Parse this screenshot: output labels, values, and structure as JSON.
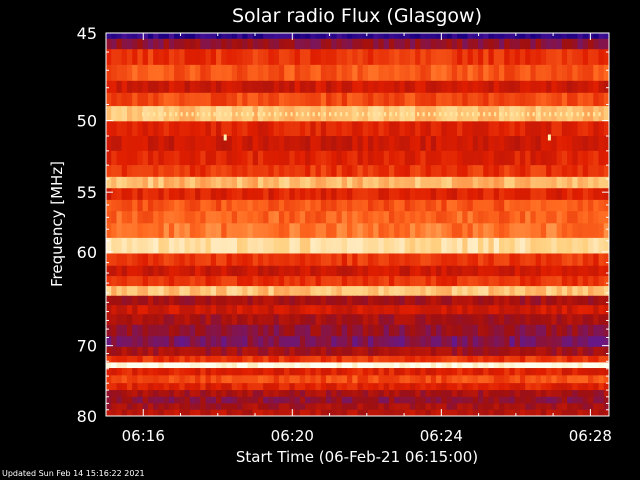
{
  "chart_data": {
    "type": "heatmap",
    "title": "Solar radio Flux (Glasgow)",
    "xlabel": "Start Time (06-Feb-21 06:15:00)",
    "ylabel": "Frequency [MHz]",
    "x_ticks": [
      "06:16",
      "06:20",
      "06:24",
      "06:28"
    ],
    "x_tick_values_min": [
      1,
      5,
      9,
      13
    ],
    "xlim_min": [
      0,
      13.5
    ],
    "y_ticks": [
      45,
      50,
      55,
      60,
      70,
      80
    ],
    "ylim": [
      45,
      80
    ],
    "y_scale": "inverse",
    "colormap": [
      "#1a0080",
      "#5a1aa0",
      "#a01010",
      "#e01e00",
      "#ff6a20",
      "#ffd080",
      "#fffff0"
    ],
    "bands": [
      {
        "freq": 45.1,
        "level": 0.05
      },
      {
        "freq": 45.5,
        "level": 0.3
      },
      {
        "freq": 46.2,
        "level": 0.55
      },
      {
        "freq": 47.2,
        "level": 0.62
      },
      {
        "freq": 48.0,
        "level": 0.45
      },
      {
        "freq": 48.6,
        "level": 0.6
      },
      {
        "freq": 49.6,
        "level": 0.82
      },
      {
        "freq": 50.5,
        "level": 0.5
      },
      {
        "freq": 51.5,
        "level": 0.45
      },
      {
        "freq": 52.5,
        "level": 0.5
      },
      {
        "freq": 53.5,
        "level": 0.55
      },
      {
        "freq": 54.2,
        "level": 0.8
      },
      {
        "freq": 55.2,
        "level": 0.5
      },
      {
        "freq": 56.0,
        "level": 0.62
      },
      {
        "freq": 57.0,
        "level": 0.65
      },
      {
        "freq": 58.0,
        "level": 0.68
      },
      {
        "freq": 59.5,
        "level": 0.88
      },
      {
        "freq": 60.8,
        "level": 0.55
      },
      {
        "freq": 61.8,
        "level": 0.45
      },
      {
        "freq": 62.8,
        "level": 0.55
      },
      {
        "freq": 63.8,
        "level": 0.82
      },
      {
        "freq": 64.8,
        "level": 0.35
      },
      {
        "freq": 65.8,
        "level": 0.45
      },
      {
        "freq": 66.8,
        "level": 0.35
      },
      {
        "freq": 68.2,
        "level": 0.3
      },
      {
        "freq": 69.5,
        "level": 0.25
      },
      {
        "freq": 70.8,
        "level": 0.35
      },
      {
        "freq": 71.8,
        "level": 0.55
      },
      {
        "freq": 72.5,
        "level": 0.98
      },
      {
        "freq": 73.3,
        "level": 0.5
      },
      {
        "freq": 74.5,
        "level": 0.6
      },
      {
        "freq": 75.5,
        "level": 0.5
      },
      {
        "freq": 76.5,
        "level": 0.35
      },
      {
        "freq": 77.5,
        "level": 0.3
      },
      {
        "freq": 78.5,
        "level": 0.35
      },
      {
        "freq": 79.5,
        "level": 0.4
      }
    ],
    "bursts": [
      {
        "time_min": 3.2,
        "freq": 51.1
      },
      {
        "time_min": 11.9,
        "freq": 51.1
      }
    ]
  },
  "footer": "Updated Sun Feb 14 15:16:22 2021"
}
